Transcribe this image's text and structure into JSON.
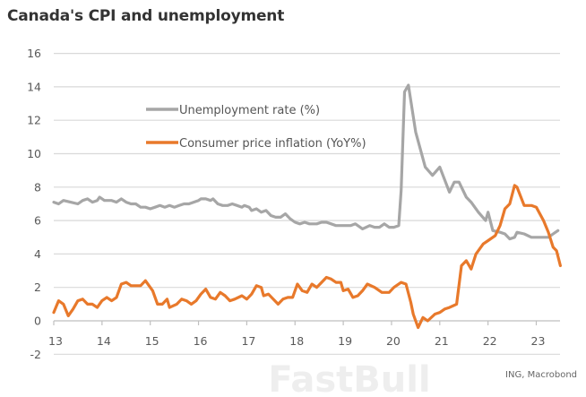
{
  "chart_data": {
    "type": "line",
    "title": "Canada's CPI and unemployment",
    "source": "ING, Macrobond",
    "watermark": "FastBull",
    "xlabel": "",
    "ylabel": "",
    "xlim": [
      2013,
      2023.5
    ],
    "ylim": [
      -2,
      16
    ],
    "grid": true,
    "legend_position": "top-left inside plot",
    "x_tick_labels": [
      "13",
      "14",
      "15",
      "16",
      "17",
      "18",
      "19",
      "20",
      "21",
      "22",
      "23"
    ],
    "y_tick_labels": [
      "-2",
      "0",
      "2",
      "4",
      "6",
      "8",
      "10",
      "12",
      "14",
      "16"
    ],
    "series": [
      {
        "name": "Unemployment rate (%)",
        "color": "#a6a6a6",
        "points": [
          [
            2013.0,
            7.1
          ],
          [
            2013.1,
            7.0
          ],
          [
            2013.2,
            7.2
          ],
          [
            2013.35,
            7.1
          ],
          [
            2013.5,
            7.0
          ],
          [
            2013.6,
            7.2
          ],
          [
            2013.7,
            7.3
          ],
          [
            2013.8,
            7.1
          ],
          [
            2013.9,
            7.2
          ],
          [
            2013.95,
            7.4
          ],
          [
            2014.05,
            7.2
          ],
          [
            2014.2,
            7.2
          ],
          [
            2014.3,
            7.1
          ],
          [
            2014.4,
            7.3
          ],
          [
            2014.5,
            7.1
          ],
          [
            2014.6,
            7.0
          ],
          [
            2014.7,
            7.0
          ],
          [
            2014.8,
            6.8
          ],
          [
            2014.9,
            6.8
          ],
          [
            2015.0,
            6.7
          ],
          [
            2015.1,
            6.8
          ],
          [
            2015.2,
            6.9
          ],
          [
            2015.3,
            6.8
          ],
          [
            2015.4,
            6.9
          ],
          [
            2015.5,
            6.8
          ],
          [
            2015.6,
            6.9
          ],
          [
            2015.7,
            7.0
          ],
          [
            2015.8,
            7.0
          ],
          [
            2015.9,
            7.1
          ],
          [
            2016.0,
            7.2
          ],
          [
            2016.05,
            7.3
          ],
          [
            2016.15,
            7.3
          ],
          [
            2016.25,
            7.2
          ],
          [
            2016.3,
            7.3
          ],
          [
            2016.4,
            7.0
          ],
          [
            2016.5,
            6.9
          ],
          [
            2016.6,
            6.9
          ],
          [
            2016.7,
            7.0
          ],
          [
            2016.8,
            6.9
          ],
          [
            2016.9,
            6.8
          ],
          [
            2016.95,
            6.9
          ],
          [
            2017.05,
            6.8
          ],
          [
            2017.1,
            6.6
          ],
          [
            2017.2,
            6.7
          ],
          [
            2017.3,
            6.5
          ],
          [
            2017.4,
            6.6
          ],
          [
            2017.5,
            6.3
          ],
          [
            2017.6,
            6.2
          ],
          [
            2017.7,
            6.2
          ],
          [
            2017.8,
            6.4
          ],
          [
            2017.9,
            6.1
          ],
          [
            2018.0,
            5.9
          ],
          [
            2018.1,
            5.8
          ],
          [
            2018.2,
            5.9
          ],
          [
            2018.3,
            5.8
          ],
          [
            2018.45,
            5.8
          ],
          [
            2018.55,
            5.9
          ],
          [
            2018.65,
            5.9
          ],
          [
            2018.75,
            5.8
          ],
          [
            2018.85,
            5.7
          ],
          [
            2019.0,
            5.7
          ],
          [
            2019.15,
            5.7
          ],
          [
            2019.25,
            5.8
          ],
          [
            2019.4,
            5.5
          ],
          [
            2019.55,
            5.7
          ],
          [
            2019.65,
            5.6
          ],
          [
            2019.75,
            5.6
          ],
          [
            2019.85,
            5.8
          ],
          [
            2019.95,
            5.6
          ],
          [
            2020.05,
            5.6
          ],
          [
            2020.15,
            5.7
          ],
          [
            2020.2,
            7.8
          ],
          [
            2020.27,
            13.7
          ],
          [
            2020.35,
            14.1
          ],
          [
            2020.5,
            11.3
          ],
          [
            2020.7,
            9.2
          ],
          [
            2020.85,
            8.7
          ],
          [
            2021.0,
            9.2
          ],
          [
            2021.2,
            7.7
          ],
          [
            2021.3,
            8.3
          ],
          [
            2021.4,
            8.3
          ],
          [
            2021.55,
            7.4
          ],
          [
            2021.65,
            7.1
          ],
          [
            2021.8,
            6.5
          ],
          [
            2021.95,
            6.0
          ],
          [
            2022.0,
            6.5
          ],
          [
            2022.1,
            5.4
          ],
          [
            2022.25,
            5.3
          ],
          [
            2022.35,
            5.2
          ],
          [
            2022.45,
            4.9
          ],
          [
            2022.55,
            5.0
          ],
          [
            2022.6,
            5.3
          ],
          [
            2022.75,
            5.2
          ],
          [
            2022.9,
            5.0
          ],
          [
            2023.1,
            5.0
          ],
          [
            2023.25,
            5.0
          ],
          [
            2023.35,
            5.2
          ],
          [
            2023.45,
            5.4
          ]
        ]
      },
      {
        "name": "Consumer price inflation (YoY%)",
        "color": "#e8792b",
        "points": [
          [
            2013.0,
            0.5
          ],
          [
            2013.1,
            1.2
          ],
          [
            2013.2,
            1.0
          ],
          [
            2013.3,
            0.3
          ],
          [
            2013.4,
            0.7
          ],
          [
            2013.5,
            1.2
          ],
          [
            2013.6,
            1.3
          ],
          [
            2013.7,
            1.0
          ],
          [
            2013.8,
            1.0
          ],
          [
            2013.9,
            0.8
          ],
          [
            2014.0,
            1.2
          ],
          [
            2014.1,
            1.4
          ],
          [
            2014.2,
            1.2
          ],
          [
            2014.3,
            1.4
          ],
          [
            2014.4,
            2.2
          ],
          [
            2014.5,
            2.3
          ],
          [
            2014.6,
            2.1
          ],
          [
            2014.8,
            2.1
          ],
          [
            2014.9,
            2.4
          ],
          [
            2015.05,
            1.8
          ],
          [
            2015.15,
            1.0
          ],
          [
            2015.25,
            1.0
          ],
          [
            2015.35,
            1.3
          ],
          [
            2015.4,
            0.8
          ],
          [
            2015.55,
            1.0
          ],
          [
            2015.65,
            1.3
          ],
          [
            2015.75,
            1.2
          ],
          [
            2015.85,
            1.0
          ],
          [
            2015.95,
            1.2
          ],
          [
            2016.05,
            1.6
          ],
          [
            2016.15,
            1.9
          ],
          [
            2016.25,
            1.4
          ],
          [
            2016.35,
            1.3
          ],
          [
            2016.45,
            1.7
          ],
          [
            2016.55,
            1.5
          ],
          [
            2016.65,
            1.2
          ],
          [
            2016.75,
            1.3
          ],
          [
            2016.9,
            1.5
          ],
          [
            2017.0,
            1.3
          ],
          [
            2017.1,
            1.6
          ],
          [
            2017.2,
            2.1
          ],
          [
            2017.3,
            2.0
          ],
          [
            2017.35,
            1.5
          ],
          [
            2017.45,
            1.6
          ],
          [
            2017.55,
            1.3
          ],
          [
            2017.65,
            1.0
          ],
          [
            2017.75,
            1.3
          ],
          [
            2017.85,
            1.4
          ],
          [
            2017.95,
            1.4
          ],
          [
            2018.05,
            2.2
          ],
          [
            2018.15,
            1.8
          ],
          [
            2018.25,
            1.7
          ],
          [
            2018.35,
            2.2
          ],
          [
            2018.45,
            2.0
          ],
          [
            2018.55,
            2.3
          ],
          [
            2018.65,
            2.6
          ],
          [
            2018.75,
            2.5
          ],
          [
            2018.85,
            2.3
          ],
          [
            2018.95,
            2.3
          ],
          [
            2019.0,
            1.8
          ],
          [
            2019.1,
            1.9
          ],
          [
            2019.2,
            1.4
          ],
          [
            2019.3,
            1.5
          ],
          [
            2019.4,
            1.8
          ],
          [
            2019.5,
            2.2
          ],
          [
            2019.65,
            2.0
          ],
          [
            2019.8,
            1.7
          ],
          [
            2019.95,
            1.7
          ],
          [
            2020.05,
            2.0
          ],
          [
            2020.2,
            2.3
          ],
          [
            2020.3,
            2.2
          ],
          [
            2020.4,
            1.1
          ],
          [
            2020.45,
            0.4
          ],
          [
            2020.55,
            -0.4
          ],
          [
            2020.65,
            0.2
          ],
          [
            2020.75,
            0.0
          ],
          [
            2020.9,
            0.4
          ],
          [
            2021.0,
            0.5
          ],
          [
            2021.1,
            0.7
          ],
          [
            2021.2,
            0.8
          ],
          [
            2021.35,
            1.0
          ],
          [
            2021.45,
            3.3
          ],
          [
            2021.55,
            3.6
          ],
          [
            2021.65,
            3.1
          ],
          [
            2021.75,
            4.0
          ],
          [
            2021.9,
            4.6
          ],
          [
            2022.0,
            4.8
          ],
          [
            2022.15,
            5.1
          ],
          [
            2022.25,
            5.7
          ],
          [
            2022.35,
            6.7
          ],
          [
            2022.45,
            7.0
          ],
          [
            2022.55,
            8.1
          ],
          [
            2022.6,
            8.0
          ],
          [
            2022.75,
            6.9
          ],
          [
            2022.9,
            6.9
          ],
          [
            2023.0,
            6.8
          ],
          [
            2023.15,
            6.0
          ],
          [
            2023.25,
            5.3
          ],
          [
            2023.35,
            4.4
          ],
          [
            2023.42,
            4.2
          ],
          [
            2023.5,
            3.3
          ]
        ]
      }
    ]
  }
}
